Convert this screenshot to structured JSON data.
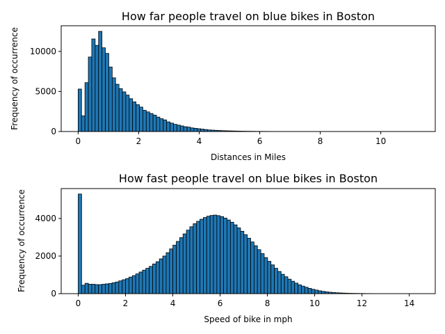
{
  "chart_data": [
    {
      "type": "bar",
      "title": "How far people travel on blue bikes in Boston",
      "xlabel": "Distances in Miles",
      "ylabel": "Frequency of occurrence",
      "xlim": [
        -0.56,
        11.8
      ],
      "ylim": [
        0,
        13200
      ],
      "xticks": [
        "0",
        "2",
        "4",
        "6",
        "8",
        "10"
      ],
      "xtick_values": [
        0,
        2,
        4,
        6,
        8,
        10
      ],
      "yticks": [
        "0",
        "5000",
        "10000"
      ],
      "ytick_values": [
        0,
        5000,
        10000
      ],
      "bin_start": 0,
      "bin_width": 0.1125,
      "grid": false,
      "bar_color": "#1f77b4",
      "edge_color": "#000000",
      "values": [
        5300,
        1950,
        6100,
        9300,
        11550,
        10750,
        12500,
        10450,
        9750,
        8050,
        6700,
        5900,
        5350,
        4950,
        4550,
        4100,
        3700,
        3350,
        3050,
        2650,
        2450,
        2250,
        2050,
        1800,
        1600,
        1450,
        1200,
        1050,
        900,
        800,
        700,
        600,
        550,
        450,
        400,
        350,
        300,
        250,
        200,
        175,
        150,
        130,
        110,
        95,
        80,
        70,
        60,
        50,
        42,
        36,
        30,
        26,
        22,
        19,
        16,
        14,
        12,
        10,
        9,
        8,
        7,
        6,
        5,
        5,
        4,
        4,
        3,
        3,
        3,
        2,
        2,
        2,
        2,
        2,
        1,
        1,
        1,
        1,
        1,
        1,
        1,
        1,
        1,
        1,
        1,
        1,
        1,
        1,
        1,
        1,
        1,
        1,
        1,
        1,
        1,
        1,
        1,
        1,
        1,
        1
      ]
    },
    {
      "type": "bar",
      "title": "How fast people travel on blue bikes in Boston",
      "xlabel": "Speed of bike in mph",
      "ylabel": "Frequency of occurrence",
      "xlim": [
        -0.72,
        15.1
      ],
      "ylim": [
        0,
        5590
      ],
      "xticks": [
        "0",
        "2",
        "4",
        "6",
        "8",
        "10",
        "12",
        "14"
      ],
      "xtick_values": [
        0,
        2,
        4,
        6,
        8,
        10,
        12,
        14
      ],
      "yticks": [
        "0",
        "2000",
        "4000"
      ],
      "ytick_values": [
        0,
        2000,
        4000
      ],
      "bin_start": 0,
      "bin_width": 0.143,
      "grid": false,
      "bar_color": "#1f77b4",
      "edge_color": "#000000",
      "values": [
        5300,
        450,
        550,
        500,
        500,
        480,
        480,
        500,
        520,
        540,
        580,
        620,
        680,
        740,
        800,
        880,
        960,
        1050,
        1150,
        1250,
        1350,
        1450,
        1580,
        1700,
        1850,
        2000,
        2180,
        2380,
        2580,
        2780,
        2980,
        3180,
        3380,
        3560,
        3720,
        3850,
        3960,
        4050,
        4120,
        4160,
        4180,
        4150,
        4100,
        4020,
        3920,
        3800,
        3660,
        3500,
        3320,
        3140,
        2950,
        2750,
        2550,
        2340,
        2130,
        1920,
        1720,
        1530,
        1350,
        1180,
        1030,
        900,
        770,
        660,
        560,
        470,
        400,
        340,
        280,
        230,
        190,
        150,
        120,
        95,
        75,
        60,
        48,
        38,
        30,
        24,
        19,
        15,
        12,
        10,
        8,
        6,
        5,
        4,
        3,
        3,
        2,
        2,
        2,
        1,
        1,
        1,
        1,
        1,
        1,
        1
      ]
    }
  ]
}
